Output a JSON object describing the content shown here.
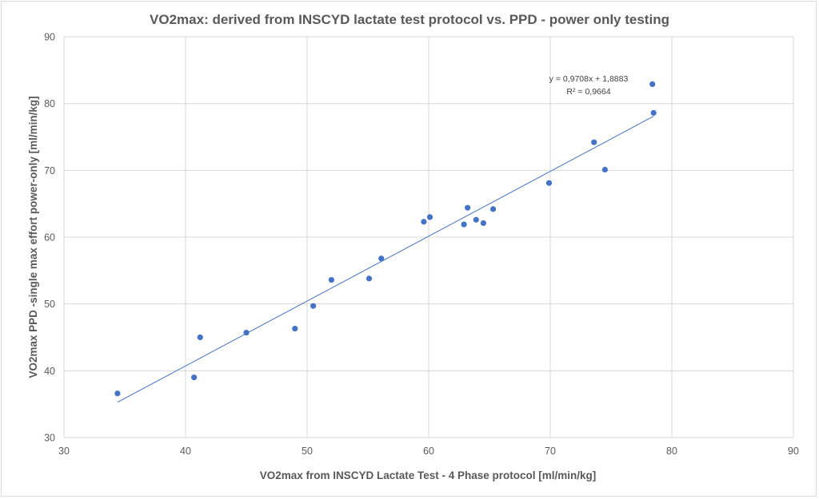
{
  "chart_data": {
    "type": "scatter",
    "title": "VO2max: derived from INSCYD lactate test protocol vs. PPD - power only testing",
    "xlabel": "VO2max from INSCYD Lactate Test - 4 Phase protocol [ml/min/kg]",
    "ylabel": "VO2max PPD -single max effort power-only [ml/min/kg]",
    "xlim": [
      30,
      90
    ],
    "ylim": [
      30,
      90
    ],
    "x_ticks": [
      "30",
      "40",
      "50",
      "60",
      "70",
      "80",
      "90"
    ],
    "y_ticks": [
      "30",
      "40",
      "50",
      "60",
      "70",
      "80",
      "90"
    ],
    "grid": true,
    "legend": "none",
    "marker_color": "#4472c4",
    "points": [
      {
        "x": 34.4,
        "y": 36.6
      },
      {
        "x": 40.7,
        "y": 39.0
      },
      {
        "x": 41.2,
        "y": 45.0
      },
      {
        "x": 45.0,
        "y": 45.7
      },
      {
        "x": 49.0,
        "y": 46.3
      },
      {
        "x": 50.5,
        "y": 49.7
      },
      {
        "x": 52.0,
        "y": 53.6
      },
      {
        "x": 55.1,
        "y": 53.8
      },
      {
        "x": 56.1,
        "y": 56.8
      },
      {
        "x": 59.6,
        "y": 62.3
      },
      {
        "x": 60.1,
        "y": 63.0
      },
      {
        "x": 62.9,
        "y": 61.9
      },
      {
        "x": 63.2,
        "y": 64.4
      },
      {
        "x": 63.9,
        "y": 62.6
      },
      {
        "x": 64.5,
        "y": 62.1
      },
      {
        "x": 65.3,
        "y": 64.2
      },
      {
        "x": 69.9,
        "y": 68.1
      },
      {
        "x": 73.6,
        "y": 74.2
      },
      {
        "x": 74.5,
        "y": 70.1
      },
      {
        "x": 78.4,
        "y": 82.9
      },
      {
        "x": 78.5,
        "y": 78.6
      }
    ],
    "trendline": {
      "type": "linear",
      "slope": 0.9708,
      "intercept": 1.8883,
      "x_range": [
        34.4,
        78.5
      ],
      "equation_label": "y = 0,9708x + 1,8883",
      "r2_label": "R² = 0,9664"
    }
  }
}
